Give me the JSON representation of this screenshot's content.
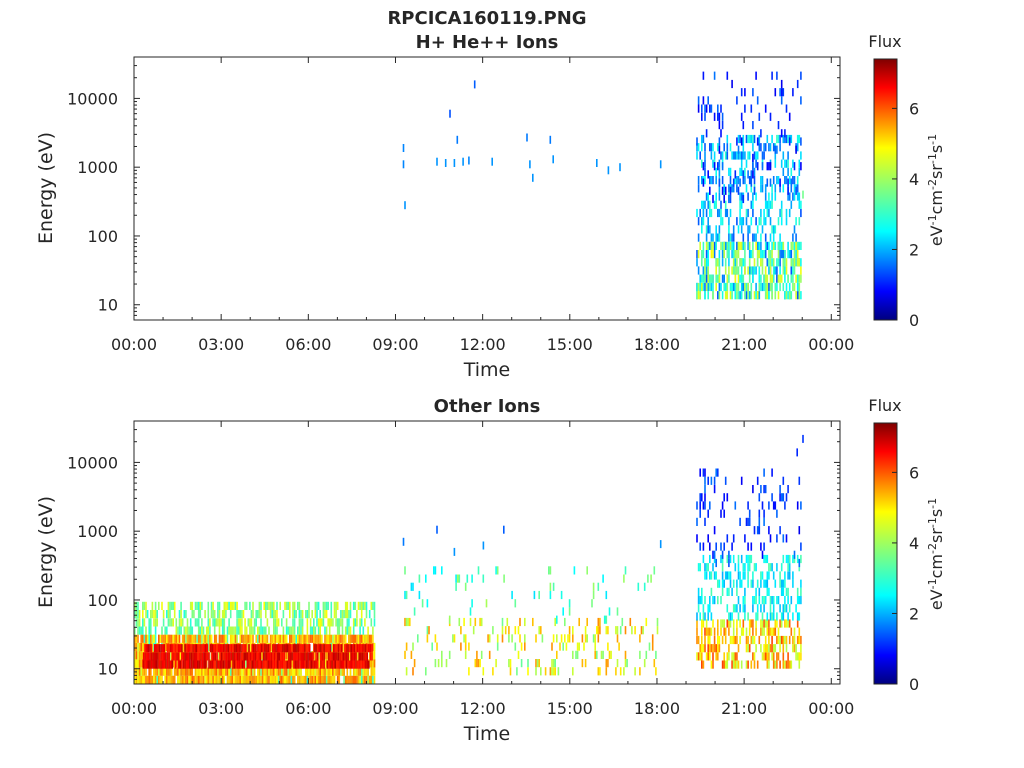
{
  "figure": {
    "title_line1": "RPCICA160119.PNG",
    "title_line2": "H+ He++ Ions"
  },
  "chart_data": [
    {
      "type": "heatmap",
      "title": "H+ He++ Ions",
      "xlabel": "Time",
      "ylabel": "Energy (eV)",
      "x_ticks": [
        "00:00",
        "03:00",
        "06:00",
        "09:00",
        "12:00",
        "15:00",
        "18:00",
        "21:00",
        "00:00"
      ],
      "x_range_hours": [
        0,
        24.3
      ],
      "y_scale": "log",
      "y_range": [
        6,
        40000
      ],
      "y_ticks": [
        {
          "value": 10,
          "label": "10"
        },
        {
          "value": 100,
          "label": "100"
        },
        {
          "value": 1000,
          "label": "1000"
        },
        {
          "value": 10000,
          "label": "10000"
        }
      ],
      "colorbar": {
        "label": "Flux",
        "units": "eV-1cm-2sr-1s-1",
        "range": [
          0,
          7.4
        ],
        "ticks": [
          "0",
          "2",
          "4",
          "6"
        ]
      },
      "blocks": [
        {
          "t0": 19.35,
          "t1": 22.95,
          "emin": 12,
          "emax": 2500,
          "flux_min": 1.5,
          "flux_max": 3.2,
          "density": 0.35
        },
        {
          "t0": 19.35,
          "t1": 22.95,
          "emin": 12,
          "emax": 70,
          "flux_min": 2.8,
          "flux_max": 4.6,
          "density": 0.45
        },
        {
          "t0": 19.35,
          "t1": 22.95,
          "emin": 300,
          "emax": 20000,
          "flux_min": 0.8,
          "flux_max": 1.8,
          "density": 0.1
        }
      ],
      "points": [
        {
          "t": 9.25,
          "e": 1900,
          "flux": 1.9
        },
        {
          "t": 9.25,
          "e": 1100,
          "flux": 1.9
        },
        {
          "t": 9.3,
          "e": 280,
          "flux": 2.0
        },
        {
          "t": 10.4,
          "e": 1200,
          "flux": 2.0
        },
        {
          "t": 10.7,
          "e": 1150,
          "flux": 2.0
        },
        {
          "t": 10.85,
          "e": 6000,
          "flux": 1.5
        },
        {
          "t": 11.0,
          "e": 1150,
          "flux": 2.0
        },
        {
          "t": 11.1,
          "e": 2500,
          "flux": 1.8
        },
        {
          "t": 11.3,
          "e": 1200,
          "flux": 2.0
        },
        {
          "t": 11.5,
          "e": 1250,
          "flux": 1.9
        },
        {
          "t": 11.7,
          "e": 16000,
          "flux": 1.6
        },
        {
          "t": 12.3,
          "e": 1200,
          "flux": 2.0
        },
        {
          "t": 13.5,
          "e": 2700,
          "flux": 1.8
        },
        {
          "t": 13.6,
          "e": 1100,
          "flux": 2.0
        },
        {
          "t": 13.7,
          "e": 700,
          "flux": 2.0
        },
        {
          "t": 14.3,
          "e": 2500,
          "flux": 1.8
        },
        {
          "t": 14.4,
          "e": 1300,
          "flux": 2.0
        },
        {
          "t": 15.9,
          "e": 1150,
          "flux": 2.0
        },
        {
          "t": 16.3,
          "e": 900,
          "flux": 2.0
        },
        {
          "t": 16.7,
          "e": 1000,
          "flux": 2.0
        },
        {
          "t": 18.1,
          "e": 1100,
          "flux": 2.0
        },
        {
          "t": 23.0,
          "e": 400,
          "flux": 3.6
        }
      ]
    },
    {
      "type": "heatmap",
      "title": "Other Ions",
      "xlabel": "Time",
      "ylabel": "Energy (eV)",
      "x_ticks": [
        "00:00",
        "03:00",
        "06:00",
        "09:00",
        "12:00",
        "15:00",
        "18:00",
        "21:00",
        "00:00"
      ],
      "x_range_hours": [
        0,
        24.3
      ],
      "y_scale": "log",
      "y_range": [
        6,
        40000
      ],
      "y_ticks": [
        {
          "value": 10,
          "label": "10"
        },
        {
          "value": 100,
          "label": "100"
        },
        {
          "value": 1000,
          "label": "1000"
        },
        {
          "value": 10000,
          "label": "10000"
        }
      ],
      "colorbar": {
        "label": "Flux",
        "units": "eV-1cm-2sr-1s-1",
        "range": [
          0,
          7.4
        ],
        "ticks": [
          "0",
          "2",
          "4",
          "6"
        ]
      },
      "blocks": [
        {
          "t0": 0.0,
          "t1": 8.3,
          "emin": 6,
          "emax": 80,
          "flux_min": 3.0,
          "flux_max": 4.6,
          "density": 0.55
        },
        {
          "t0": 0.0,
          "t1": 8.3,
          "emin": 6,
          "emax": 25,
          "flux_min": 4.6,
          "flux_max": 5.8,
          "density": 0.85
        },
        {
          "t0": 0.3,
          "t1": 8.2,
          "emin": 10,
          "emax": 20,
          "flux_min": 6.2,
          "flux_max": 7.0,
          "density": 0.9
        },
        {
          "t0": 9.3,
          "t1": 18.0,
          "emin": 8,
          "emax": 45,
          "flux_min": 3.5,
          "flux_max": 5.5,
          "density": 0.18
        },
        {
          "t0": 9.3,
          "t1": 18.0,
          "emin": 45,
          "emax": 300,
          "flux_min": 2.5,
          "flux_max": 4.0,
          "density": 0.06
        },
        {
          "t0": 19.35,
          "t1": 22.95,
          "emin": 10,
          "emax": 50,
          "flux_min": 4.0,
          "flux_max": 6.0,
          "density": 0.55
        },
        {
          "t0": 19.35,
          "t1": 22.95,
          "emin": 50,
          "emax": 400,
          "flux_min": 2.2,
          "flux_max": 3.4,
          "density": 0.4
        },
        {
          "t0": 19.35,
          "t1": 22.95,
          "emin": 300,
          "emax": 8000,
          "flux_min": 0.8,
          "flux_max": 1.8,
          "density": 0.12
        }
      ],
      "points": [
        {
          "t": 9.25,
          "e": 700,
          "flux": 1.8
        },
        {
          "t": 10.4,
          "e": 1050,
          "flux": 1.6
        },
        {
          "t": 11.0,
          "e": 500,
          "flux": 2.0
        },
        {
          "t": 12.0,
          "e": 620,
          "flux": 2.0
        },
        {
          "t": 12.7,
          "e": 1050,
          "flux": 1.6
        },
        {
          "t": 18.1,
          "e": 650,
          "flux": 2.0
        },
        {
          "t": 23.0,
          "e": 22000,
          "flux": 1.3
        },
        {
          "t": 22.8,
          "e": 14000,
          "flux": 1.2
        }
      ]
    }
  ]
}
